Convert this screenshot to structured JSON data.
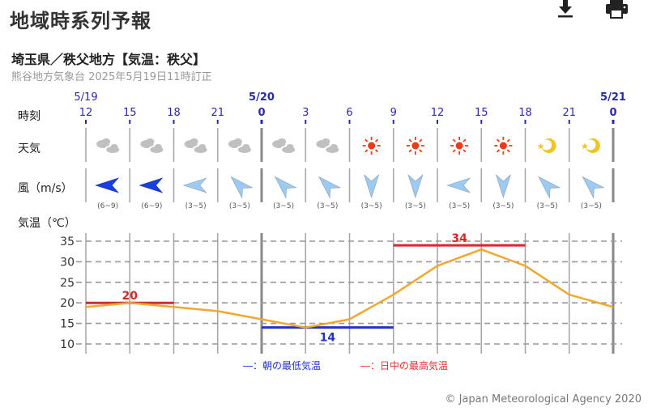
{
  "header": {
    "title": "地域時系列予報",
    "download_icon": "download-icon",
    "print_icon": "printer-icon"
  },
  "region": {
    "subtitle": "埼玉県／秩父地方【気温：秩父】",
    "issued": "熊谷地方気象台 2025年5月19日11時訂正"
  },
  "rows": {
    "time_label": "時刻",
    "weather_label": "天気",
    "wind_label": "風（m/s）",
    "temp_label": "気温（℃）"
  },
  "colors": {
    "time_text": "#2a2aa8",
    "grid_line": "#999999",
    "temp_line": "#f0a830",
    "max_line": "#d42a2a",
    "min_line": "#2233cc",
    "wind_strong": "#1840e0",
    "wind_weak": "#9ccaf0",
    "sun": "#ee3a1a",
    "moon": "#f2c51a",
    "cloud": "#c0c0c0"
  },
  "times": [
    {
      "date": "5/19",
      "hour": "12",
      "bold": false
    },
    {
      "date": "",
      "hour": "15",
      "bold": false
    },
    {
      "date": "",
      "hour": "18",
      "bold": false
    },
    {
      "date": "",
      "hour": "21",
      "bold": false
    },
    {
      "date": "5/20",
      "hour": "0",
      "bold": true
    },
    {
      "date": "",
      "hour": "3",
      "bold": false
    },
    {
      "date": "",
      "hour": "6",
      "bold": false
    },
    {
      "date": "",
      "hour": "9",
      "bold": false
    },
    {
      "date": "",
      "hour": "12",
      "bold": false
    },
    {
      "date": "",
      "hour": "15",
      "bold": false
    },
    {
      "date": "",
      "hour": "18",
      "bold": false
    },
    {
      "date": "",
      "hour": "21",
      "bold": false
    },
    {
      "date": "5/21",
      "hour": "0",
      "bold": true
    }
  ],
  "weather": [
    "cloudy",
    "cloudy",
    "cloudy",
    "cloudy",
    "cloudy",
    "cloudy",
    "sunny",
    "sunny",
    "sunny",
    "sunny",
    "clear-night",
    "clear-night"
  ],
  "wind": [
    {
      "dir_deg": 270,
      "speed": "(6~9)",
      "strong": true
    },
    {
      "dir_deg": 270,
      "speed": "(6~9)",
      "strong": true
    },
    {
      "dir_deg": 270,
      "speed": "(3~5)",
      "strong": false
    },
    {
      "dir_deg": 225,
      "speed": "(3~5)",
      "strong": false
    },
    {
      "dir_deg": 225,
      "speed": "(3~5)",
      "strong": false
    },
    {
      "dir_deg": 225,
      "speed": "(3~5)",
      "strong": false
    },
    {
      "dir_deg": 180,
      "speed": "(3~5)",
      "strong": false
    },
    {
      "dir_deg": 180,
      "speed": "(3~5)",
      "strong": false
    },
    {
      "dir_deg": 270,
      "speed": "(3~5)",
      "strong": false
    },
    {
      "dir_deg": 180,
      "speed": "(3~5)",
      "strong": false
    },
    {
      "dir_deg": 225,
      "speed": "(3~5)",
      "strong": false
    },
    {
      "dir_deg": 225,
      "speed": "(3~5)",
      "strong": false
    }
  ],
  "legend": {
    "min_label": "―：朝の最低気温",
    "max_label": "―：日中の最高気温"
  },
  "copyright": "© Japan Meteorological Agency 2020",
  "chart_data": {
    "type": "line",
    "title": "気温（℃）",
    "xlabel": "時刻",
    "ylabel": "気温（℃）",
    "x": [
      "5/19 12",
      "15",
      "18",
      "21",
      "5/20 0",
      "3",
      "6",
      "9",
      "12",
      "15",
      "18",
      "21",
      "5/21 0"
    ],
    "series": [
      {
        "name": "気温",
        "values": [
          19,
          20,
          19,
          18,
          16,
          14,
          16,
          22,
          29,
          33,
          29,
          22,
          19
        ]
      }
    ],
    "annotations": [
      {
        "name": "日中の最高気温 (5/19)",
        "value": 20,
        "x_from": "5/19 12",
        "x_to": "18",
        "color": "#d42a2a"
      },
      {
        "name": "朝の最低気温 (5/20)",
        "value": 14,
        "x_from": "5/20 0",
        "x_to": "9",
        "color": "#2233cc"
      },
      {
        "name": "日中の最高気温 (5/20)",
        "value": 34,
        "x_from": "9",
        "x_to": "18",
        "color": "#d42a2a"
      }
    ],
    "yticks": [
      10,
      15,
      20,
      25,
      30,
      35
    ],
    "ylim": [
      8,
      37
    ],
    "grid": true,
    "legend_position": "bottom"
  }
}
